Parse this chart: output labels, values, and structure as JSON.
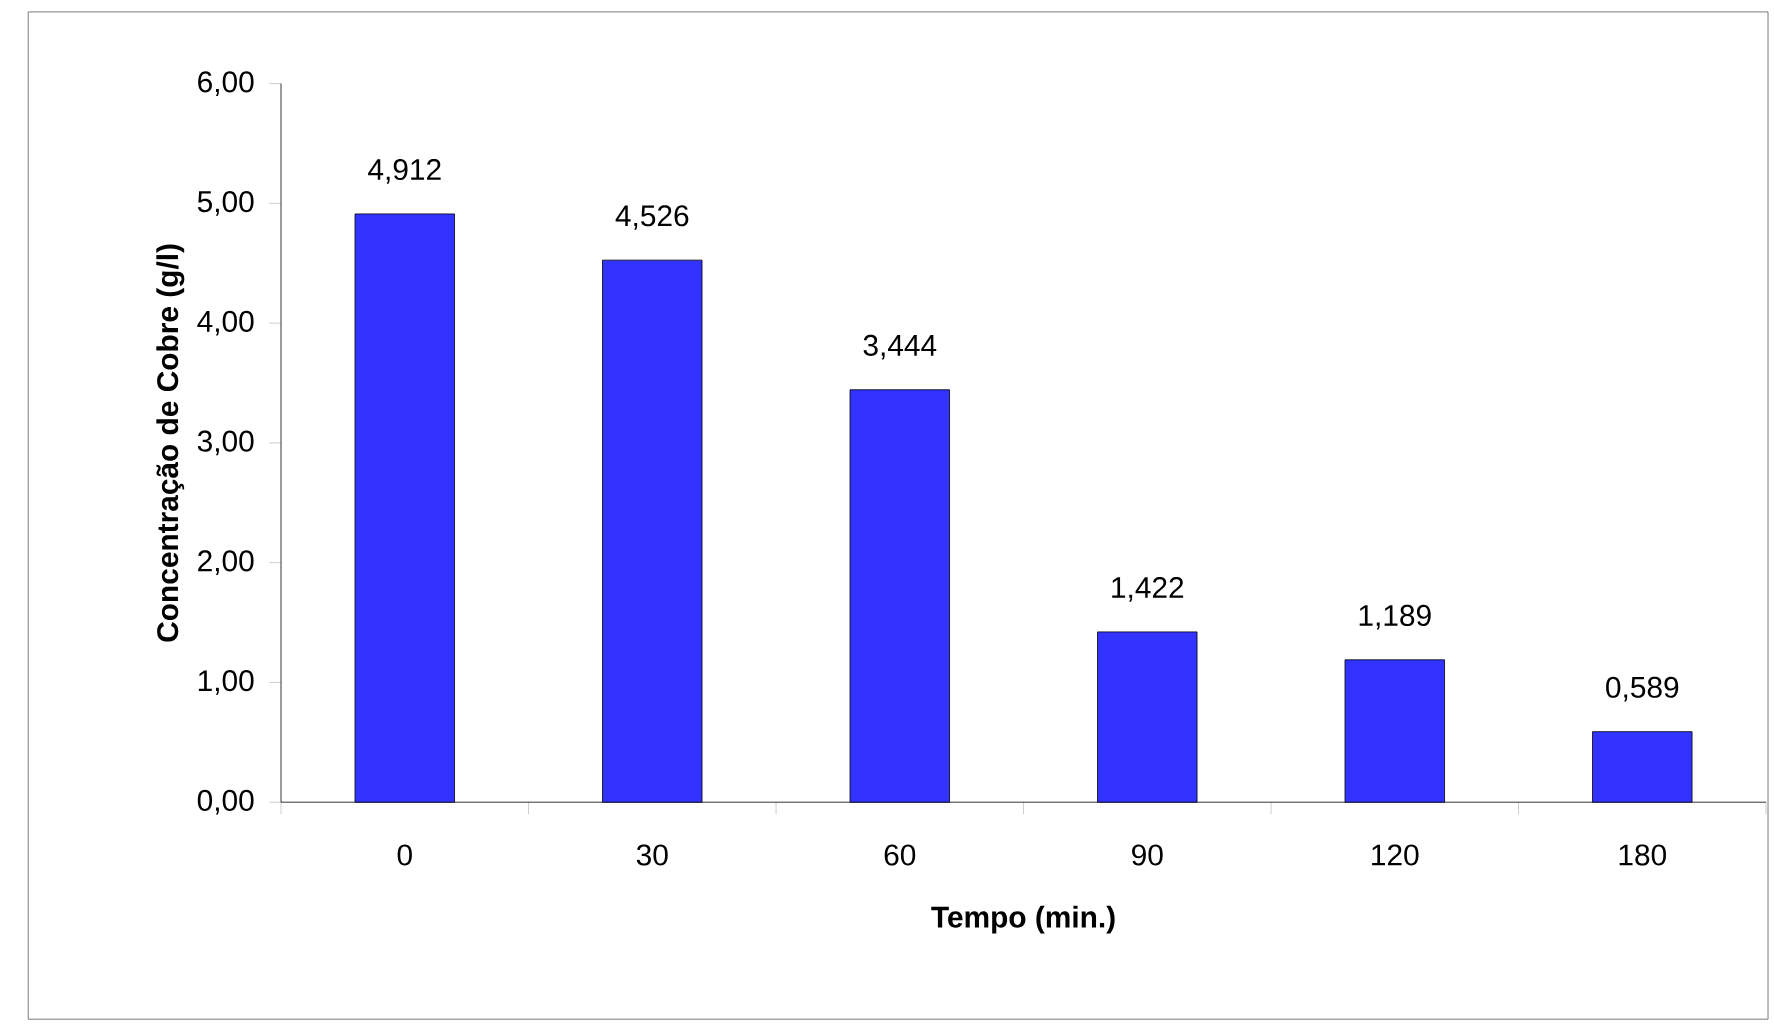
{
  "chart_data": {
    "type": "bar",
    "xlabel": "Tempo (min.)",
    "ylabel": "Concentração de Cobre (g/l)",
    "categories": [
      "0",
      "30",
      "60",
      "90",
      "120",
      "180"
    ],
    "values": [
      4.912,
      4.526,
      3.444,
      1.422,
      1.189,
      0.589
    ],
    "value_labels": [
      "4,912",
      "4,526",
      "3,444",
      "1,422",
      "1,189",
      "0,589"
    ],
    "color": "#3333ff",
    "ylim": [
      0,
      6
    ],
    "yticks": [
      {
        "value": 0,
        "label": "0,00"
      },
      {
        "value": 1,
        "label": "1,00"
      },
      {
        "value": 2,
        "label": "2,00"
      },
      {
        "value": 3,
        "label": "3,00"
      },
      {
        "value": 4,
        "label": "4,00"
      },
      {
        "value": 5,
        "label": "5,00"
      },
      {
        "value": 6,
        "label": "6,00"
      }
    ],
    "grid": false
  }
}
